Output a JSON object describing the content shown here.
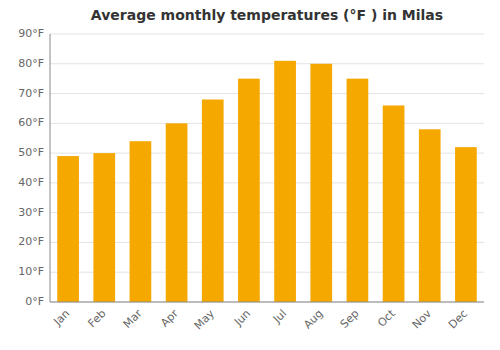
{
  "chart_data": {
    "type": "bar",
    "title": "Average monthly temperatures (°F ) in Milas",
    "categories": [
      "Jan",
      "Feb",
      "Mar",
      "Apr",
      "May",
      "Jun",
      "Jul",
      "Aug",
      "Sep",
      "Oct",
      "Nov",
      "Dec"
    ],
    "values": [
      49,
      50,
      54,
      60,
      68,
      75,
      81,
      80,
      75,
      66,
      58,
      52
    ],
    "color": "#F5A800",
    "ylim": [
      0,
      90
    ],
    "yticks": [
      {
        "value": 0,
        "label": "0°F"
      },
      {
        "value": 10,
        "label": "10°F"
      },
      {
        "value": 20,
        "label": "20°F"
      },
      {
        "value": 30,
        "label": "30°F"
      },
      {
        "value": 40,
        "label": "40°F"
      },
      {
        "value": 50,
        "label": "50°F"
      },
      {
        "value": 60,
        "label": "60°F"
      },
      {
        "value": 70,
        "label": "70°F"
      },
      {
        "value": 80,
        "label": "80°F"
      },
      {
        "value": 90,
        "label": "90°F"
      }
    ],
    "grid": true
  }
}
